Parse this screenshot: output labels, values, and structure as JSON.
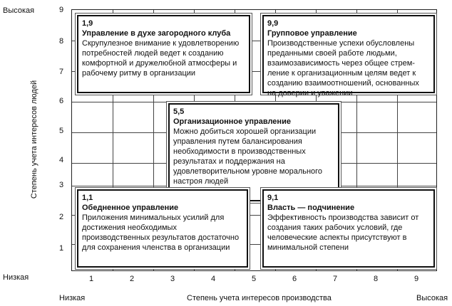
{
  "y_axis": {
    "label": "Степень учета интересов людей",
    "high": "Высокая",
    "low": "Низкая",
    "ticks": [
      "9",
      "8",
      "7",
      "6",
      "5",
      "4",
      "3",
      "2",
      "1"
    ]
  },
  "x_axis": {
    "label": "Степень учета интересов производства",
    "low": "Низкая",
    "high": "Высокая",
    "ticks": [
      "1",
      "2",
      "3",
      "4",
      "5",
      "6",
      "7",
      "8",
      "9"
    ]
  },
  "boxes": [
    {
      "code": "1,9",
      "title": "Управление в духе загородного клуба",
      "text": "Скрупулезное внимание к удовлетворению потребностей людей ведет к созданию комфортной и дружелюбной атмосферы и рабочему ритму в организации"
    },
    {
      "code": "9,9",
      "title": "Групповое управление",
      "text": "Производственные успехи обусловлены преданными своей работе людьми, взаимозависимость через общее стрем-ление к организационным целям ведет к созданию взаимоотношений, основанных на доверии и уважении"
    },
    {
      "code": "5,5",
      "title": "Организационное управление",
      "text": "Можно добиться хорошей организации управления путем балансирования необходимости в производственных результатах и поддержания на удовлетворительном уровне морального настроя людей"
    },
    {
      "code": "1,1",
      "title": "Обедненное управление",
      "text": "Приложения минимальных усилий для достижения необходимых производственных результатов достаточно для сохранения членства в организации"
    },
    {
      "code": "9,1",
      "title": "Власть — подчинение",
      "text": "Эффективность производства зависит от создания таких рабочих условий, где человеческие аспекты присутствуют в минимальной степени"
    }
  ]
}
